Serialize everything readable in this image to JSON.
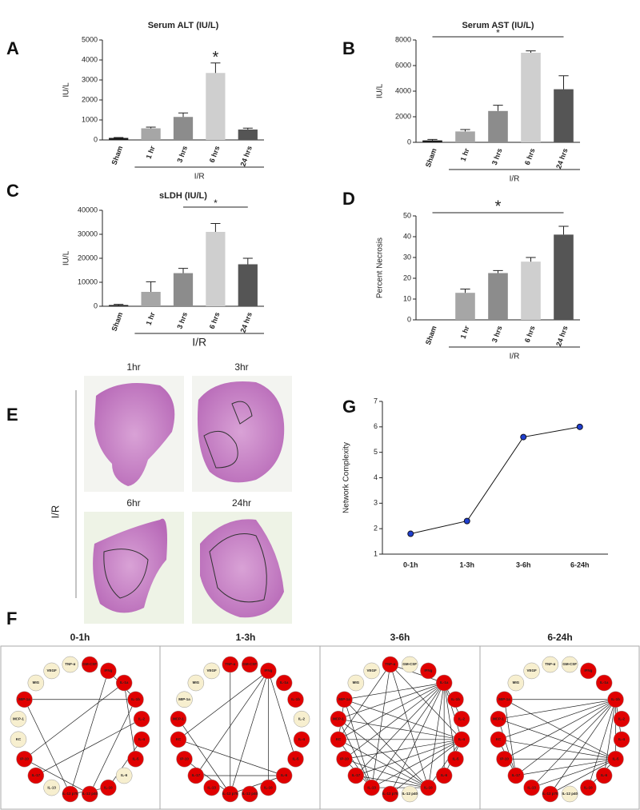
{
  "chart_data": [
    {
      "type": "bar",
      "panel": "A",
      "title": "Serum ALT (IU/L)",
      "y_label": "IU/L",
      "categories": [
        "Sham",
        "1 hr",
        "3 hrs",
        "6 hrs",
        "24 hrs"
      ],
      "values": [
        100,
        580,
        1150,
        3350,
        520
      ],
      "errors": [
        20,
        60,
        200,
        500,
        70
      ],
      "colors": [
        "#1a1a1a",
        "#a6a6a6",
        "#8c8c8c",
        "#cfcfcf",
        "#555555"
      ],
      "ylim": [
        0,
        5000
      ],
      "yticks": [
        0,
        1000,
        2000,
        3000,
        4000,
        5000
      ],
      "group": {
        "label": "I/R",
        "categories": [
          "1 hr",
          "24 hrs"
        ]
      },
      "significance": {
        "label": "*",
        "categories": [
          "6 hrs"
        ]
      }
    },
    {
      "type": "bar",
      "panel": "B",
      "title": "Serum AST (IU/L)",
      "y_label": "IU/L",
      "categories": [
        "Sham",
        "1 hr",
        "3 hrs",
        "6 hrs",
        "24 hrs"
      ],
      "values": [
        150,
        850,
        2450,
        7000,
        4150
      ],
      "errors": [
        80,
        150,
        450,
        150,
        1050
      ],
      "colors": [
        "#1a1a1a",
        "#a6a6a6",
        "#8c8c8c",
        "#cfcfcf",
        "#555555"
      ],
      "ylim": [
        0,
        8000
      ],
      "yticks": [
        0,
        2000,
        4000,
        6000,
        8000
      ],
      "group": {
        "label": "I/R",
        "categories": [
          "1 hr",
          "24 hrs"
        ]
      },
      "significance": {
        "label": "*",
        "categories": [
          "Sham",
          "24 hrs"
        ]
      }
    },
    {
      "type": "bar",
      "panel": "C",
      "title": "sLDH (IU/L)",
      "y_label": "IU/L",
      "categories": [
        "Sham",
        "1 hr",
        "3 hrs",
        "6 hrs",
        "24 hrs"
      ],
      "values": [
        500,
        6000,
        13800,
        31000,
        17500
      ],
      "errors": [
        300,
        4200,
        2000,
        3500,
        2500
      ],
      "colors": [
        "#1a1a1a",
        "#a6a6a6",
        "#8c8c8c",
        "#cfcfcf",
        "#555555"
      ],
      "ylim": [
        0,
        40000
      ],
      "yticks": [
        0,
        10000,
        20000,
        30000,
        40000
      ],
      "group": {
        "label": "I/R",
        "categories": [
          "1 hr",
          "24 hrs"
        ]
      },
      "significance": {
        "label": "*",
        "categories": [
          "3 hrs",
          "24 hrs"
        ]
      }
    },
    {
      "type": "bar",
      "panel": "D",
      "y_label": "Percent Necrosis",
      "categories": [
        "Sham",
        "1 hr",
        "3 hrs",
        "6 hrs",
        "24 hrs"
      ],
      "values": [
        0,
        13,
        22.5,
        28,
        41
      ],
      "errors": [
        0,
        1.8,
        1.2,
        2,
        4
      ],
      "colors": [
        "#1a1a1a",
        "#a6a6a6",
        "#8c8c8c",
        "#cfcfcf",
        "#555555"
      ],
      "ylim": [
        0,
        50
      ],
      "yticks": [
        0,
        10,
        20,
        30,
        40,
        50
      ],
      "group": {
        "label": "I/R",
        "categories": [
          "1 hr",
          "24 hrs"
        ]
      },
      "significance": {
        "label": "*",
        "categories": [
          "Sham",
          "24 hrs"
        ]
      }
    },
    {
      "type": "line",
      "panel": "G",
      "y_label": "Network Complexity",
      "categories": [
        "0-1h",
        "1-3h",
        "3-6h",
        "6-24h"
      ],
      "values": [
        1.8,
        2.3,
        5.6,
        6.0
      ],
      "color": "#1f3fcf",
      "ylim": [
        1,
        7
      ],
      "yticks": [
        1,
        2,
        3,
        4,
        5,
        6,
        7
      ]
    }
  ],
  "histology": {
    "panel": "E",
    "side_label": "I/R",
    "labels": [
      "1hr",
      "3hr",
      "6hr",
      "24hr"
    ]
  },
  "networks": {
    "panel": "F",
    "cytokines": [
      "GM-CSF",
      "IFNg",
      "IL-1a",
      "IL-1b",
      "IL-2",
      "IL-4",
      "IL-5",
      "IL-6",
      "IL-10",
      "IL-12 p40",
      "IL-12 p70",
      "IL-13",
      "IL-17",
      "IP-10",
      "KC",
      "MCP-1",
      "MIP-1a",
      "MIG",
      "VEGF",
      "TNF-α"
    ],
    "panels": [
      {
        "title": "0-1h",
        "colors": [
          "#e00000",
          "#e00000",
          "#e00000",
          "#e00000",
          "#e00000",
          "#e00000",
          "#e00000",
          "#f7efcf",
          "#e00000",
          "#e00000",
          "#e00000",
          "#f7efcf",
          "#e00000",
          "#e00000",
          "#f7efcf",
          "#f7efcf",
          "#e00000",
          "#f7efcf",
          "#f7efcf",
          "#f7efcf"
        ]
      },
      {
        "title": "1-3h",
        "colors": [
          "#e00000",
          "#e00000",
          "#e00000",
          "#e00000",
          "#f7efcf",
          "#e00000",
          "#e00000",
          "#e00000",
          "#e00000",
          "#e00000",
          "#e00000",
          "#e00000",
          "#e00000",
          "#e00000",
          "#e00000",
          "#e00000",
          "#f7efcf",
          "#f7efcf",
          "#f7efcf",
          "#e00000"
        ]
      },
      {
        "title": "3-6h",
        "colors": [
          "#f7efcf",
          "#e00000",
          "#e00000",
          "#e00000",
          "#e00000",
          "#e00000",
          "#e00000",
          "#e00000",
          "#e00000",
          "#f7efcf",
          "#e00000",
          "#e00000",
          "#e00000",
          "#e00000",
          "#e00000",
          "#e00000",
          "#e00000",
          "#f7efcf",
          "#f7efcf",
          "#e00000"
        ]
      },
      {
        "title": "6-24h",
        "colors": [
          "#f7efcf",
          "#e00000",
          "#e00000",
          "#e00000",
          "#e00000",
          "#e00000",
          "#e00000",
          "#e00000",
          "#e00000",
          "#f7efcf",
          "#e00000",
          "#e00000",
          "#e00000",
          "#e00000",
          "#e00000",
          "#e00000",
          "#e00000",
          "#f7efcf",
          "#f7efcf",
          "#f7efcf"
        ]
      }
    ]
  }
}
